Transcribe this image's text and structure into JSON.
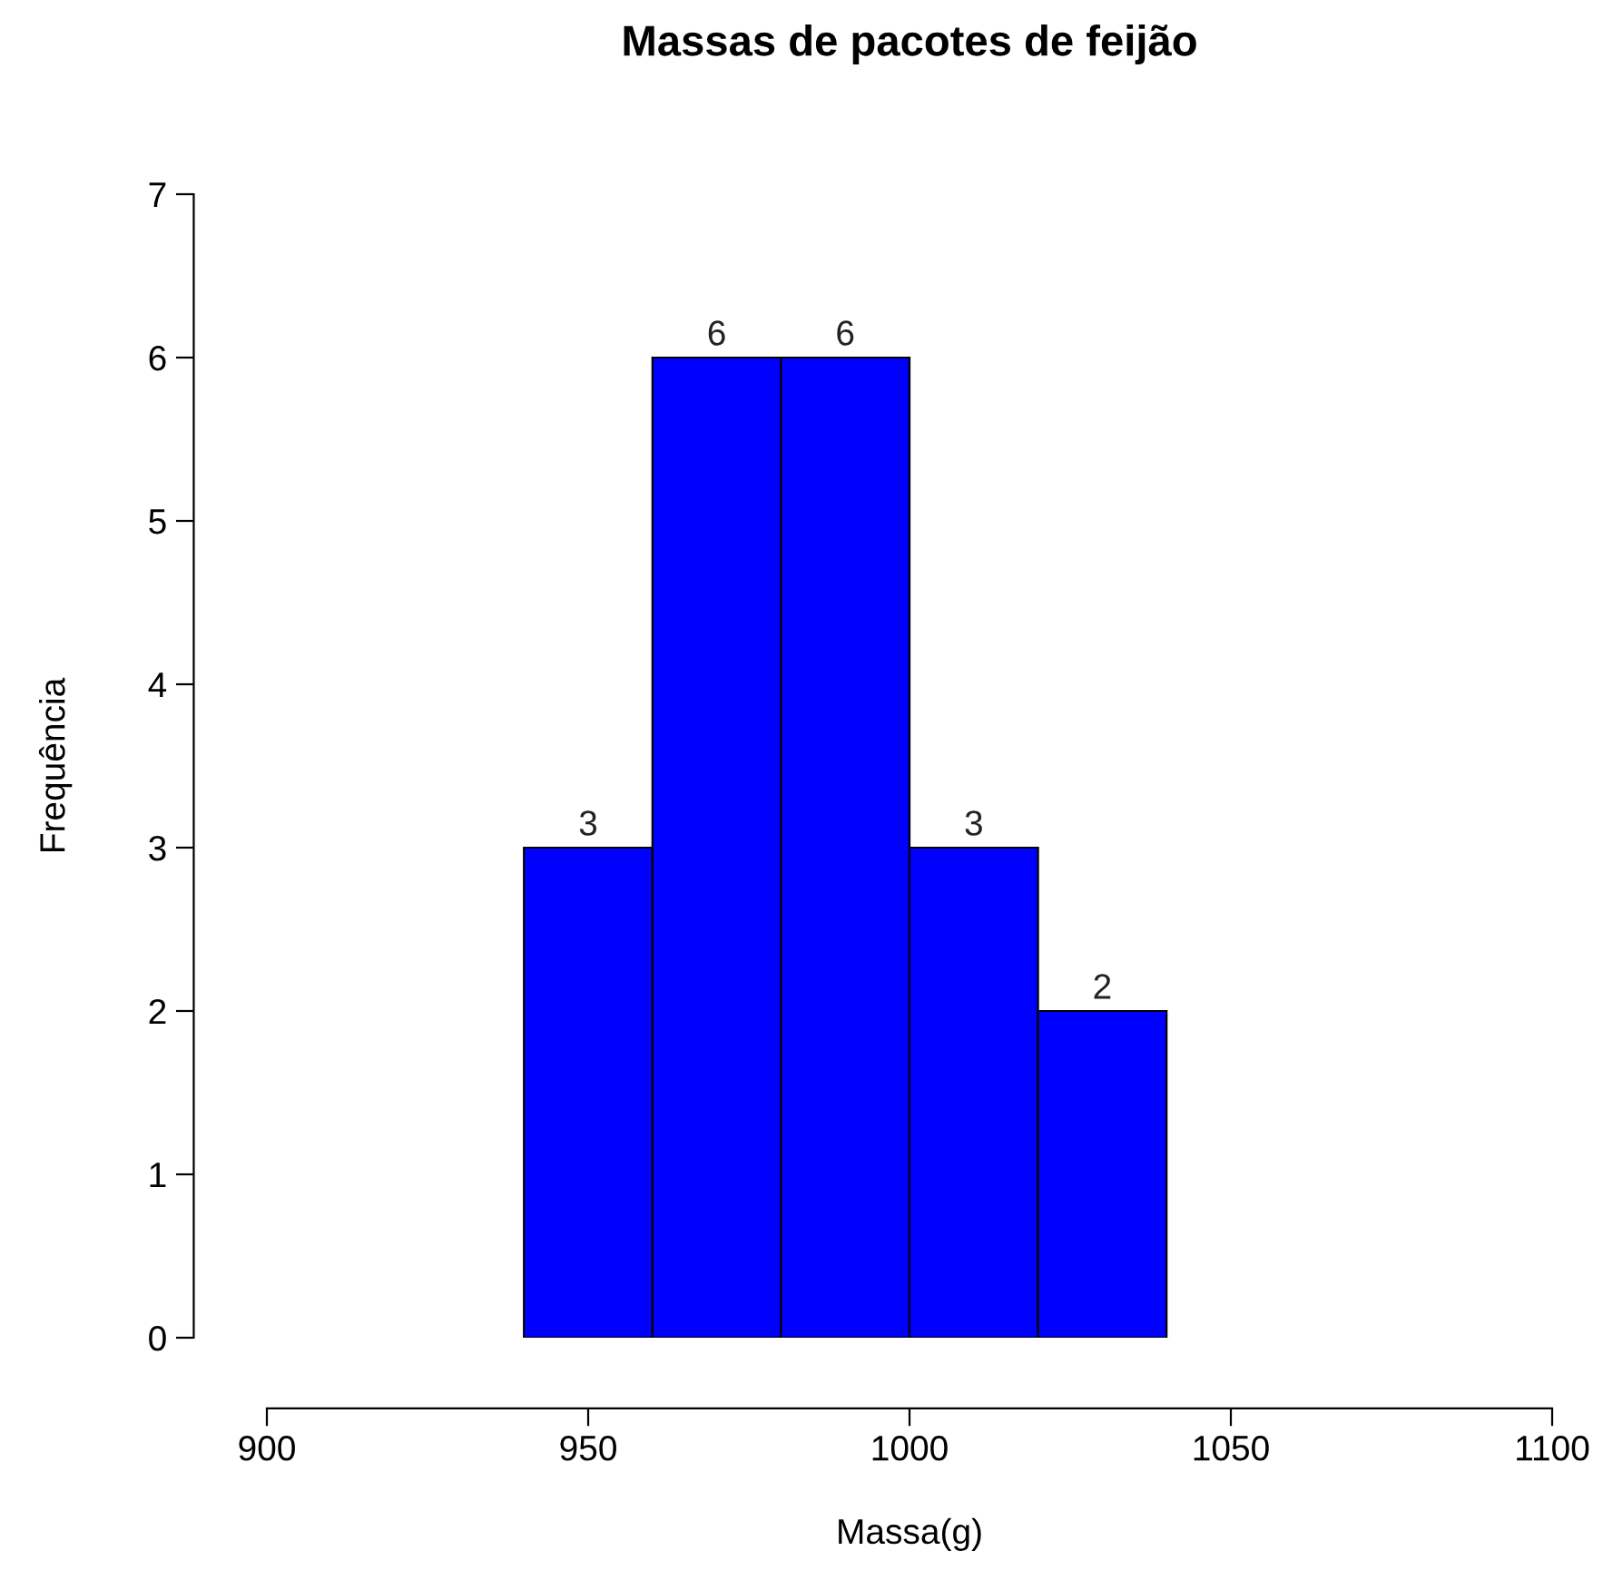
{
  "chart_data": {
    "type": "histogram",
    "title": "Massas de pacotes de feijão",
    "xlabel": "Massa(g)",
    "ylabel": "Frequência",
    "bins": [
      940,
      960,
      980,
      1000,
      1020,
      1040
    ],
    "values": [
      3,
      6,
      6,
      3,
      2
    ],
    "color": "#0000ff",
    "xlim": [
      900,
      1100
    ],
    "xticks": [
      900,
      950,
      1000,
      1050,
      1100
    ],
    "ylim": [
      0,
      7
    ],
    "yticks": [
      0,
      1,
      2,
      3,
      4,
      5,
      6,
      7
    ],
    "data_labels": true,
    "grid": false,
    "legend": false
  }
}
